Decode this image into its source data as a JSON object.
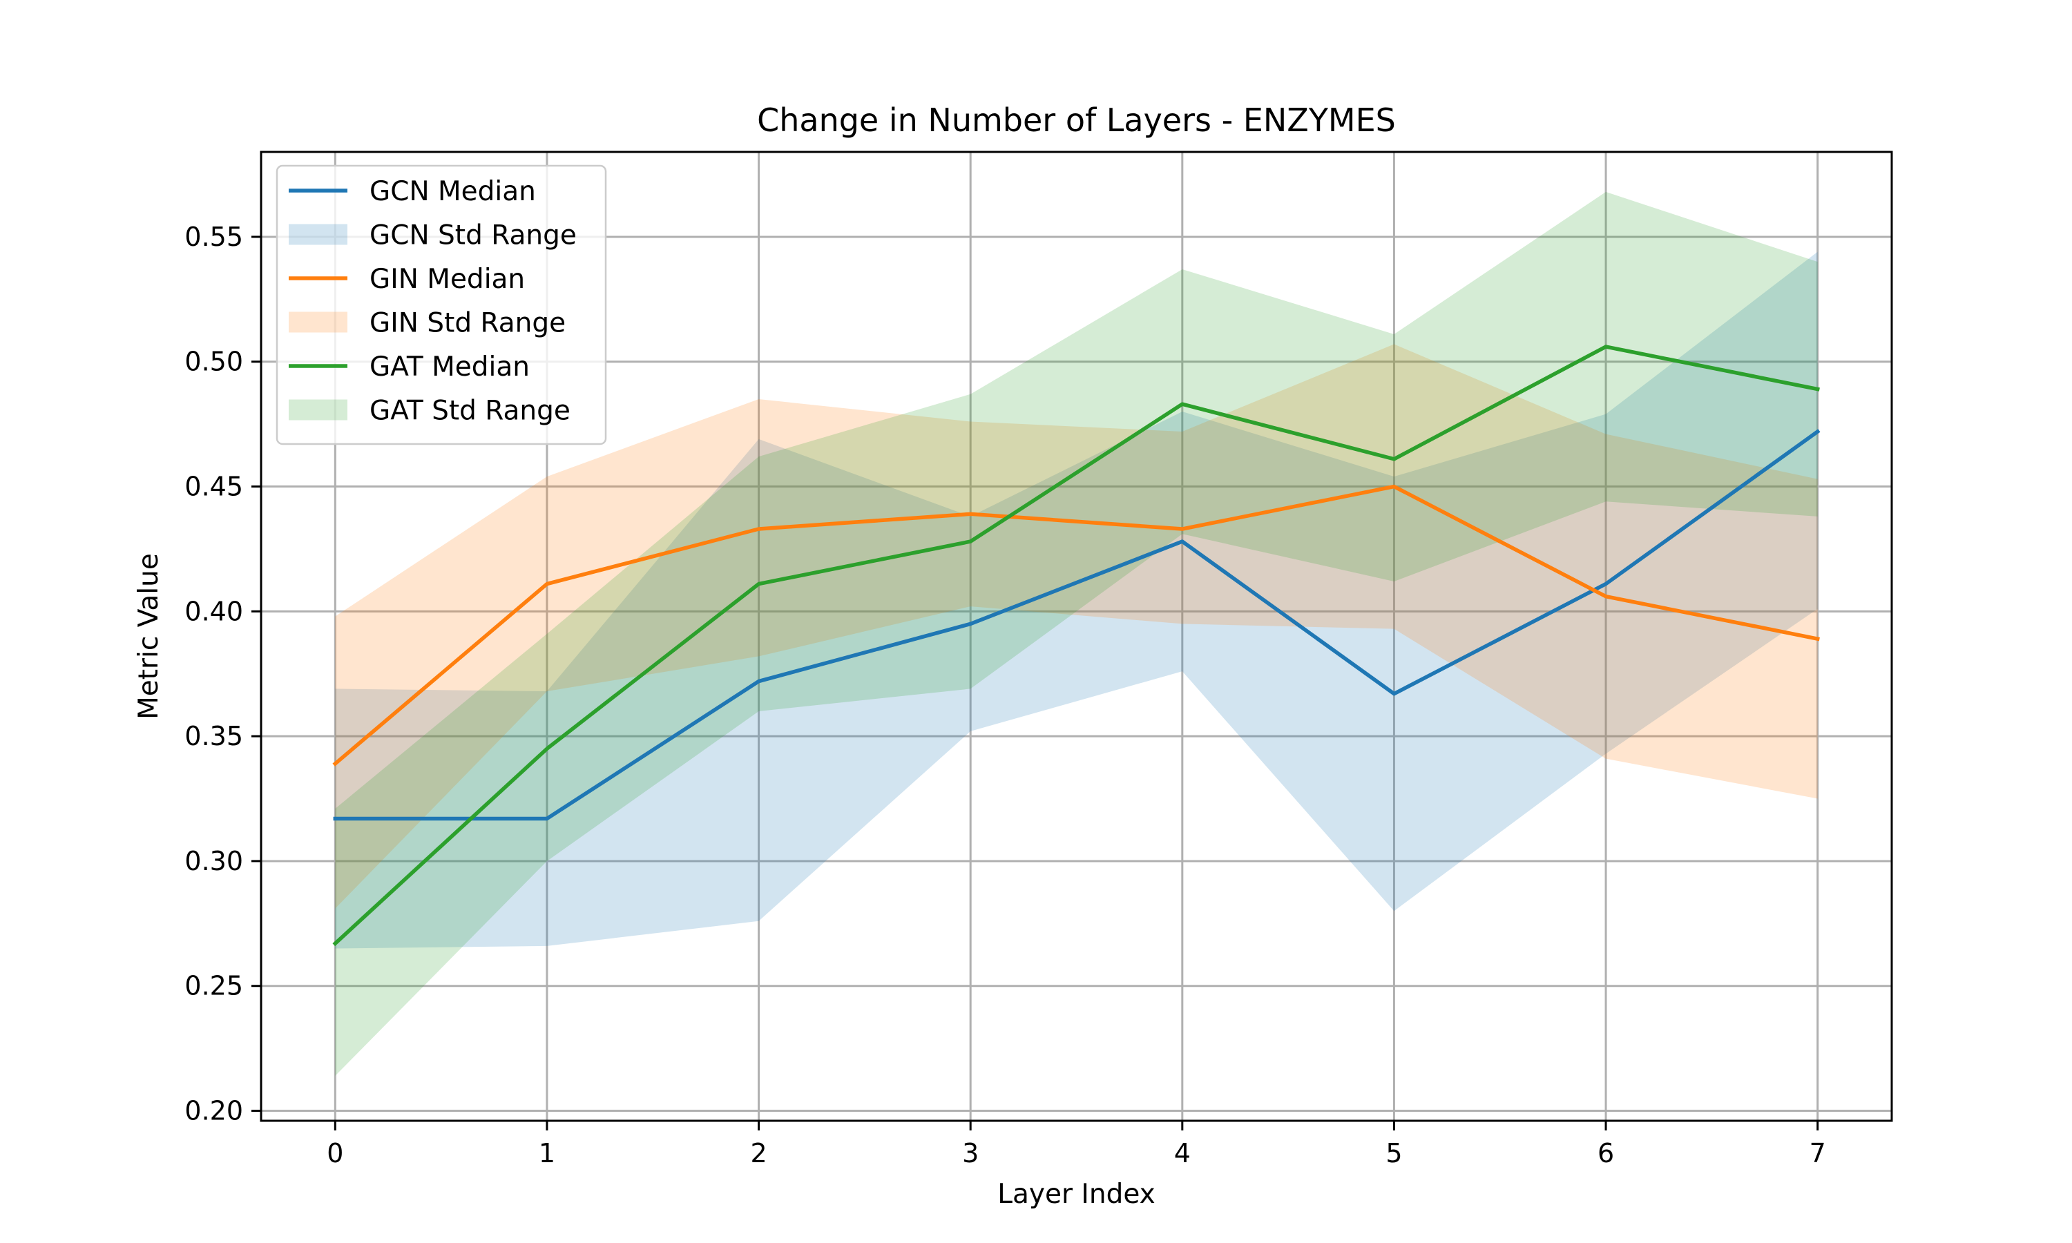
{
  "chart_data": {
    "type": "line",
    "title": "Change in Number of Layers - ENZYMES",
    "xlabel": "Layer Index",
    "ylabel": "Metric Value",
    "x": [
      0,
      1,
      2,
      3,
      4,
      5,
      6,
      7
    ],
    "xlim": [
      -0.35,
      7.35
    ],
    "ylim": [
      0.196,
      0.584
    ],
    "xticks": [
      0,
      1,
      2,
      3,
      4,
      5,
      6,
      7
    ],
    "xtick_labels": [
      "0",
      "1",
      "2",
      "3",
      "4",
      "5",
      "6",
      "7"
    ],
    "yticks": [
      0.2,
      0.25,
      0.3,
      0.35,
      0.4,
      0.45,
      0.5,
      0.55
    ],
    "ytick_labels": [
      "0.20",
      "0.25",
      "0.30",
      "0.35",
      "0.40",
      "0.45",
      "0.50",
      "0.55"
    ],
    "grid": true,
    "legend_position": "top-left",
    "series": [
      {
        "name": "GCN Median",
        "band_name": "GCN Std Range",
        "color": "#1f77b4",
        "median": [
          0.317,
          0.317,
          0.372,
          0.395,
          0.428,
          0.367,
          0.411,
          0.472
        ],
        "lower": [
          0.265,
          0.266,
          0.276,
          0.352,
          0.376,
          0.28,
          0.343,
          0.401
        ],
        "upper": [
          0.369,
          0.368,
          0.469,
          0.438,
          0.48,
          0.454,
          0.479,
          0.544
        ]
      },
      {
        "name": "GIN Median",
        "band_name": "GIN Std Range",
        "color": "#ff7f0e",
        "median": [
          0.339,
          0.411,
          0.433,
          0.439,
          0.433,
          0.45,
          0.406,
          0.389
        ],
        "lower": [
          0.281,
          0.368,
          0.382,
          0.402,
          0.395,
          0.393,
          0.341,
          0.325
        ],
        "upper": [
          0.398,
          0.454,
          0.485,
          0.476,
          0.472,
          0.507,
          0.471,
          0.453
        ]
      },
      {
        "name": "GAT Median",
        "band_name": "GAT Std Range",
        "color": "#2ca02c",
        "median": [
          0.267,
          0.345,
          0.411,
          0.428,
          0.483,
          0.461,
          0.506,
          0.489
        ],
        "lower": [
          0.214,
          0.3,
          0.36,
          0.369,
          0.431,
          0.412,
          0.444,
          0.438
        ],
        "upper": [
          0.321,
          0.391,
          0.462,
          0.487,
          0.537,
          0.511,
          0.568,
          0.54
        ]
      }
    ]
  }
}
